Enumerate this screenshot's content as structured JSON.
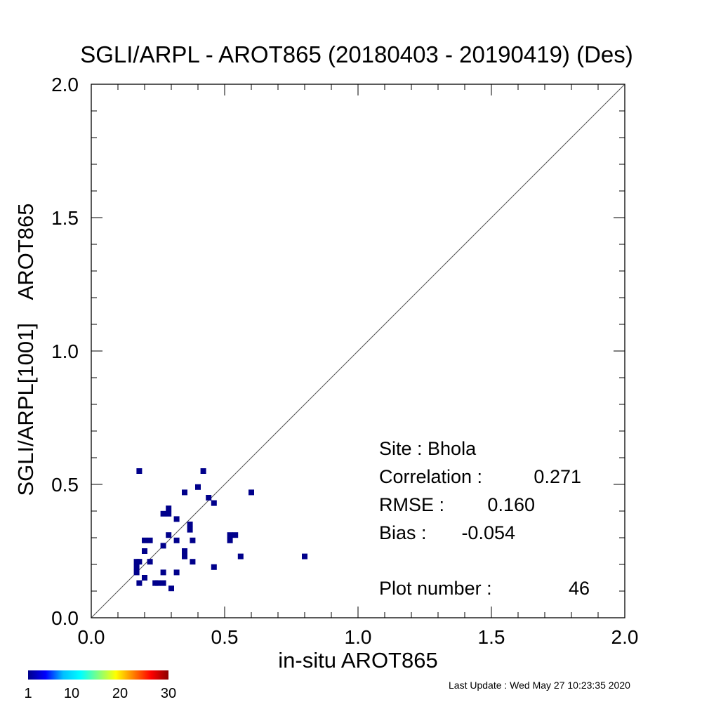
{
  "chart_data": {
    "type": "scatter",
    "title": "SGLI/ARPL - AROT865 (20180403 - 20190419) (Des)",
    "xlabel": "in-situ AROT865",
    "ylabel": "SGLI/ARPL[1001]    AROT865",
    "xlim": [
      0.0,
      2.0
    ],
    "ylim": [
      0.0,
      2.0
    ],
    "x_ticks": [
      "0.0",
      "0.5",
      "1.0",
      "1.5",
      "2.0"
    ],
    "y_ticks": [
      "0.0",
      "0.5",
      "1.0",
      "1.5",
      "2.0"
    ],
    "grid": false,
    "reference_line": "1:1",
    "point_color": "#00008b",
    "points": [
      {
        "x": 0.18,
        "y": 0.55
      },
      {
        "x": 0.42,
        "y": 0.55
      },
      {
        "x": 0.4,
        "y": 0.49
      },
      {
        "x": 0.35,
        "y": 0.47
      },
      {
        "x": 0.6,
        "y": 0.47
      },
      {
        "x": 0.44,
        "y": 0.45
      },
      {
        "x": 0.46,
        "y": 0.43
      },
      {
        "x": 0.29,
        "y": 0.41
      },
      {
        "x": 0.29,
        "y": 0.39
      },
      {
        "x": 0.27,
        "y": 0.39
      },
      {
        "x": 0.32,
        "y": 0.37
      },
      {
        "x": 0.37,
        "y": 0.35
      },
      {
        "x": 0.37,
        "y": 0.33
      },
      {
        "x": 0.29,
        "y": 0.31
      },
      {
        "x": 0.52,
        "y": 0.31
      },
      {
        "x": 0.54,
        "y": 0.31
      },
      {
        "x": 0.2,
        "y": 0.29
      },
      {
        "x": 0.22,
        "y": 0.29
      },
      {
        "x": 0.32,
        "y": 0.29
      },
      {
        "x": 0.38,
        "y": 0.29
      },
      {
        "x": 0.52,
        "y": 0.29
      },
      {
        "x": 0.27,
        "y": 0.27
      },
      {
        "x": 0.2,
        "y": 0.25
      },
      {
        "x": 0.35,
        "y": 0.25
      },
      {
        "x": 0.35,
        "y": 0.23
      },
      {
        "x": 0.56,
        "y": 0.23
      },
      {
        "x": 0.8,
        "y": 0.23
      },
      {
        "x": 0.17,
        "y": 0.21
      },
      {
        "x": 0.18,
        "y": 0.21
      },
      {
        "x": 0.22,
        "y": 0.21
      },
      {
        "x": 0.38,
        "y": 0.21
      },
      {
        "x": 0.17,
        "y": 0.19
      },
      {
        "x": 0.46,
        "y": 0.19
      },
      {
        "x": 0.17,
        "y": 0.17
      },
      {
        "x": 0.27,
        "y": 0.17
      },
      {
        "x": 0.32,
        "y": 0.17
      },
      {
        "x": 0.2,
        "y": 0.15
      },
      {
        "x": 0.18,
        "y": 0.13
      },
      {
        "x": 0.24,
        "y": 0.13
      },
      {
        "x": 0.25,
        "y": 0.13
      },
      {
        "x": 0.27,
        "y": 0.13
      },
      {
        "x": 0.3,
        "y": 0.11
      }
    ],
    "colorbar": {
      "range": [
        1,
        30
      ],
      "labels": [
        "1",
        "10",
        "20",
        "30"
      ],
      "colors": [
        "#00008b",
        "#0000ff",
        "#00c0ff",
        "#00ffff",
        "#80ff80",
        "#ffff00",
        "#ff8000",
        "#ff0000",
        "#8b0000"
      ]
    }
  },
  "stats": {
    "site_label": "Site : Bhola",
    "correlation_label": "Correlation :",
    "correlation_value": "0.271",
    "rmse_label": "RMSE :",
    "rmse_value": "0.160",
    "bias_label": "Bias :",
    "bias_value": "-0.054",
    "plot_number_label": "Plot number :",
    "plot_number_value": "46"
  },
  "footer": {
    "last_update": "Last Update : Wed May 27 10:23:35 2020"
  }
}
